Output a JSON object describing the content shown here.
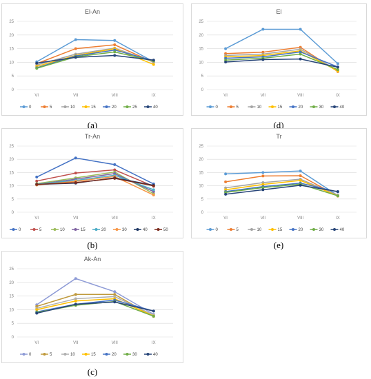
{
  "panels": [
    {
      "label": "(a)",
      "chart_data": {
        "type": "line",
        "title": "El-An",
        "categories": [
          "VI",
          "VII",
          "VIII",
          "IX"
        ],
        "ylim": [
          0,
          25
        ],
        "yticks": [
          0,
          5,
          10,
          15,
          20,
          25
        ],
        "grid": true,
        "legend_position": "bottom",
        "series": [
          {
            "name": "0",
            "color": "#5b9bd5",
            "values": [
              10.2,
              18.3,
              18.0,
              10.2
            ]
          },
          {
            "name": "5",
            "color": "#ed7d31",
            "values": [
              9.5,
              15.0,
              16.4,
              10.0
            ]
          },
          {
            "name": "10",
            "color": "#a5a5a5",
            "values": [
              9.0,
              13.0,
              15.2,
              10.1
            ]
          },
          {
            "name": "15",
            "color": "#ffc000",
            "values": [
              8.5,
              12.5,
              15.0,
              9.2
            ]
          },
          {
            "name": "20",
            "color": "#4472c4",
            "values": [
              8.0,
              12.3,
              14.5,
              10.6
            ]
          },
          {
            "name": "25",
            "color": "#70ad47",
            "values": [
              7.8,
              12.0,
              13.8,
              10.5
            ]
          },
          {
            "name": "40",
            "color": "#264478",
            "values": [
              9.7,
              11.8,
              12.5,
              10.8
            ]
          }
        ]
      }
    },
    {
      "label": "(d)",
      "chart_data": {
        "type": "line",
        "title": "El",
        "categories": [
          "VI",
          "VII",
          "VIII",
          "IX"
        ],
        "ylim": [
          0,
          25
        ],
        "yticks": [
          0,
          5,
          10,
          15,
          20,
          25
        ],
        "grid": true,
        "legend_position": "bottom",
        "series": [
          {
            "name": "0",
            "color": "#5b9bd5",
            "values": [
              15.0,
              22.1,
              22.1,
              9.5
            ]
          },
          {
            "name": "5",
            "color": "#ed7d31",
            "values": [
              13.2,
              13.7,
              15.5,
              6.6
            ]
          },
          {
            "name": "10",
            "color": "#a5a5a5",
            "values": [
              12.5,
              13.0,
              14.8,
              7.0
            ]
          },
          {
            "name": "15",
            "color": "#ffc000",
            "values": [
              12.0,
              12.5,
              14.2,
              6.8
            ]
          },
          {
            "name": "20",
            "color": "#4472c4",
            "values": [
              11.5,
              12.0,
              13.8,
              8.3
            ]
          },
          {
            "name": "30",
            "color": "#70ad47",
            "values": [
              10.8,
              11.5,
              13.0,
              7.3
            ]
          },
          {
            "name": "40",
            "color": "#264478",
            "values": [
              10.1,
              11.0,
              11.2,
              8.2
            ]
          }
        ]
      }
    },
    {
      "label": "(b)",
      "chart_data": {
        "type": "line",
        "title": "Tr-An",
        "categories": [
          "VI",
          "VII",
          "VIII",
          "IX"
        ],
        "ylim": [
          0,
          25
        ],
        "yticks": [
          0,
          5,
          10,
          15,
          20,
          25
        ],
        "grid": true,
        "legend_position": "bottom",
        "series": [
          {
            "name": "0",
            "color": "#4472c4",
            "values": [
              13.3,
              20.5,
              18.0,
              10.7
            ]
          },
          {
            "name": "5",
            "color": "#c0504d",
            "values": [
              11.8,
              14.8,
              16.0,
              9.8
            ]
          },
          {
            "name": "10",
            "color": "#9bbb59",
            "values": [
              10.8,
              13.0,
              15.2,
              7.0
            ]
          },
          {
            "name": "15",
            "color": "#8064a2",
            "values": [
              10.5,
              12.5,
              14.6,
              7.8
            ]
          },
          {
            "name": "20",
            "color": "#4bacc6",
            "values": [
              10.6,
              12.0,
              14.0,
              8.5
            ]
          },
          {
            "name": "30",
            "color": "#f79646",
            "values": [
              10.3,
              11.7,
              13.5,
              6.5
            ]
          },
          {
            "name": "40",
            "color": "#1f3864",
            "values": [
              10.5,
              11.0,
              13.0,
              10.2
            ]
          },
          {
            "name": "50",
            "color": "#7b2c1e",
            "values": [
              10.5,
              11.2,
              12.8,
              10.0
            ]
          }
        ]
      }
    },
    {
      "label": "(e)",
      "chart_data": {
        "type": "line",
        "title": "Tr",
        "categories": [
          "VI",
          "VII",
          "VIII",
          "IX"
        ],
        "ylim": [
          0,
          25
        ],
        "yticks": [
          0,
          5,
          10,
          15,
          20,
          25
        ],
        "grid": true,
        "legend_position": "bottom",
        "series": [
          {
            "name": "0",
            "color": "#5b9bd5",
            "values": [
              14.5,
              15.0,
              15.6,
              6.3
            ]
          },
          {
            "name": "5",
            "color": "#ed7d31",
            "values": [
              11.5,
              13.7,
              13.8,
              6.1
            ]
          },
          {
            "name": "10",
            "color": "#a5a5a5",
            "values": [
              9.2,
              11.2,
              12.5,
              6.5
            ]
          },
          {
            "name": "15",
            "color": "#ffc000",
            "values": [
              8.5,
              10.5,
              12.0,
              6.2
            ]
          },
          {
            "name": "20",
            "color": "#4472c4",
            "values": [
              7.8,
              9.7,
              11.0,
              7.7
            ]
          },
          {
            "name": "30",
            "color": "#70ad47",
            "values": [
              7.5,
              9.3,
              10.6,
              6.2
            ]
          },
          {
            "name": "40",
            "color": "#264478",
            "values": [
              6.8,
              8.5,
              10.2,
              7.8
            ]
          }
        ]
      }
    },
    {
      "label": "(c)",
      "chart_data": {
        "type": "line",
        "title": "Ak-An",
        "categories": [
          "VI",
          "VII",
          "VIII",
          "IX"
        ],
        "ylim": [
          0,
          25
        ],
        "yticks": [
          0,
          5,
          10,
          15,
          20,
          25
        ],
        "grid": true,
        "legend_position": "bottom",
        "series": [
          {
            "name": "0",
            "color": "#8e9bd6",
            "values": [
              11.8,
              21.4,
              16.6,
              8.3
            ]
          },
          {
            "name": "5",
            "color": "#c09a3c",
            "values": [
              11.2,
              15.6,
              15.6,
              7.5
            ]
          },
          {
            "name": "10",
            "color": "#b0b0b0",
            "values": [
              10.5,
              14.0,
              14.8,
              8.0
            ]
          },
          {
            "name": "15",
            "color": "#ffc000",
            "values": [
              10.0,
              13.2,
              14.0,
              7.7
            ]
          },
          {
            "name": "20",
            "color": "#4472c4",
            "values": [
              9.2,
              12.0,
              13.5,
              9.5
            ]
          },
          {
            "name": "30",
            "color": "#70ad47",
            "values": [
              9.0,
              11.6,
              13.0,
              7.6
            ]
          },
          {
            "name": "40",
            "color": "#264478",
            "values": [
              8.7,
              12.0,
              12.8,
              9.5
            ]
          }
        ]
      }
    }
  ]
}
